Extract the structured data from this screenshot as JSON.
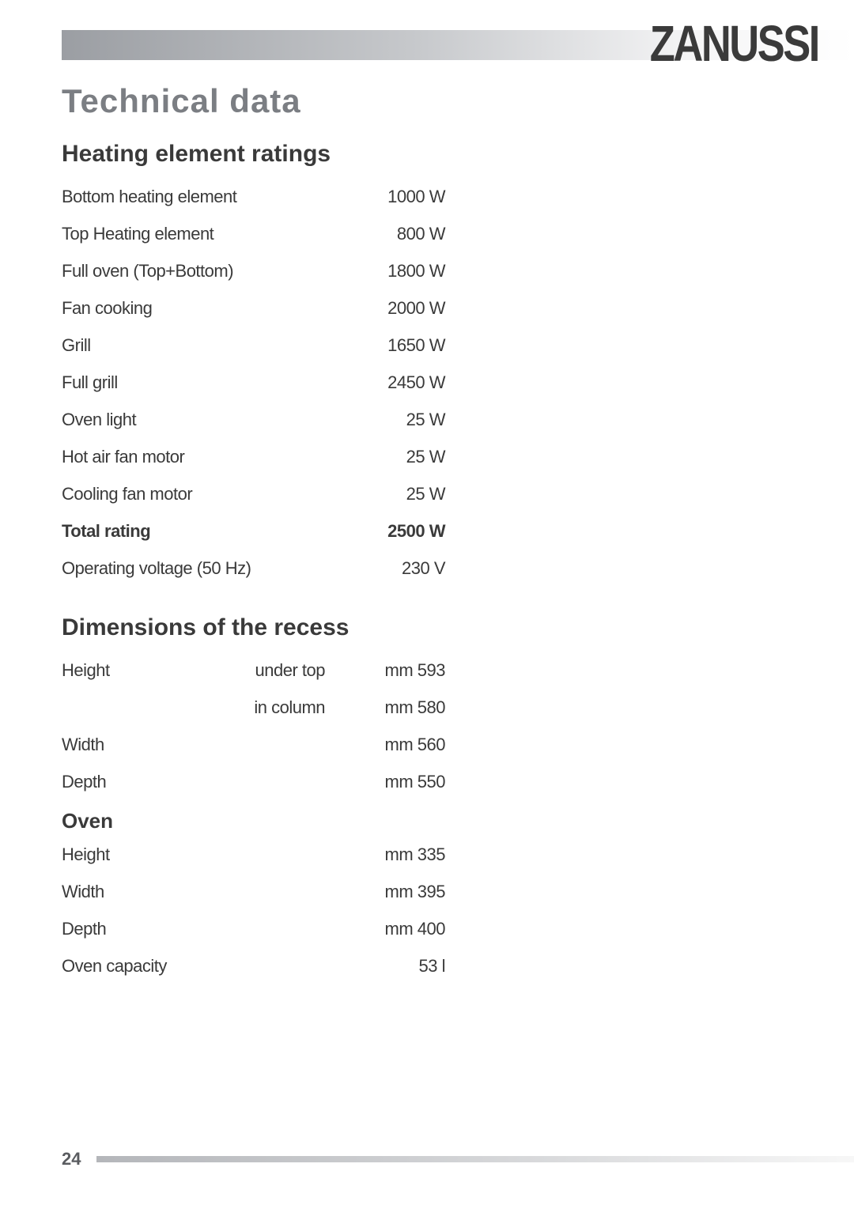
{
  "brand": "ZANUSSI",
  "page_number": "24",
  "main_title": "Technical  data",
  "sections": {
    "ratings": {
      "title": "Heating element ratings",
      "rows": [
        {
          "label": "Bottom heating element",
          "mid": "",
          "value": "1000  W",
          "bold": false
        },
        {
          "label": "Top Heating element",
          "mid": "",
          "value": "800 W",
          "bold": false
        },
        {
          "label": "Full oven (Top+Bottom)",
          "mid": "",
          "value": "1800  W",
          "bold": false
        },
        {
          "label": "Fan cooking",
          "mid": "",
          "value": "2000 W",
          "bold": false
        },
        {
          "label": "Grill",
          "mid": "",
          "value": "1650 W",
          "bold": false
        },
        {
          "label": "Full grill",
          "mid": "",
          "value": "2450 W",
          "bold": false
        },
        {
          "label": "Oven light",
          "mid": "",
          "value": "25 W",
          "bold": false
        },
        {
          "label": "Hot air fan motor",
          "mid": "",
          "value": "25 W",
          "bold": false
        },
        {
          "label": "Cooling fan motor",
          "mid": "",
          "value": "25 W",
          "bold": false
        },
        {
          "label": "Total rating",
          "mid": "",
          "value": "2500 W",
          "bold": true
        },
        {
          "label": "Operating voltage (50 Hz)",
          "mid": "",
          "value": "230 V",
          "bold": false
        }
      ]
    },
    "recess": {
      "title": "Dimensions of the recess",
      "rows": [
        {
          "label": "Height",
          "mid": "under top",
          "value": "mm 593",
          "bold": false
        },
        {
          "label": "",
          "mid": "in column",
          "value": "mm 580",
          "bold": false
        },
        {
          "label": "Width",
          "mid": "",
          "value": "mm 560",
          "bold": false
        },
        {
          "label": "Depth",
          "mid": "",
          "value": "mm 550",
          "bold": false
        }
      ]
    },
    "oven": {
      "title": "Oven",
      "rows": [
        {
          "label": "Height",
          "mid": "",
          "value": "mm 335",
          "bold": false
        },
        {
          "label": "Width",
          "mid": "",
          "value": "mm 395",
          "bold": false
        },
        {
          "label": "Depth",
          "mid": "",
          "value": "mm  400",
          "bold": false
        },
        {
          "label": "Oven capacity",
          "mid": "",
          "value": "53 l",
          "bold": false
        }
      ]
    }
  },
  "colors": {
    "title_color": "#7b7e83",
    "text_color": "#3a3a3a",
    "bar_gradient_start": "#9b9ea3",
    "bar_gradient_end": "#ffffff",
    "background": "#ffffff"
  }
}
